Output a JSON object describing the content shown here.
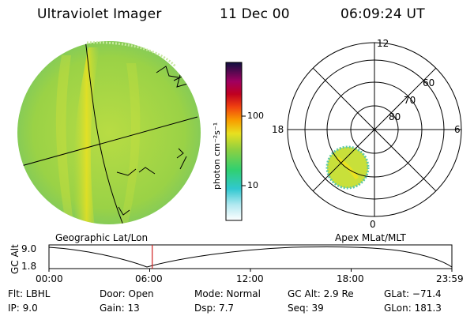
{
  "header": {
    "title": "Ultraviolet Imager",
    "date": "11 Dec 00",
    "time": "06:09:24 UT"
  },
  "colorbar": {
    "unit_label": "photon cm⁻²s⁻¹",
    "ticks": [
      "100",
      "10"
    ]
  },
  "map_labels": {
    "left": "Geographic Lat/Lon",
    "right": "Apex MLat/MLT"
  },
  "polar": {
    "mlt_labels": {
      "top": "12",
      "left": "18",
      "right": "6",
      "bottom": "0"
    },
    "lat_labels": [
      "60",
      "70",
      "80"
    ]
  },
  "altitude_plot": {
    "ylabel": "GC Alt",
    "yticks": [
      "9.0",
      "1.8"
    ],
    "xticks": [
      "00:00",
      "06:00",
      "12:00",
      "18:00",
      "23:59"
    ],
    "current_time_marker_hours": 6.15
  },
  "status": {
    "flt": "Flt: LBHL",
    "ip": "IP:  9.0",
    "door": "Door: Open",
    "gain": "Gain: 13",
    "mode": "Mode: Normal",
    "dsp": "Dsp:     7.7",
    "gc_alt": "GC Alt: 2.9 Re",
    "seq": "Seq: 39",
    "glat": "GLat: −71.4",
    "glon": "GLon: 181.3"
  },
  "colors": {
    "background": "#ffffff",
    "marker": "#d02020",
    "aurora_green": "#9ad246",
    "aurora_yellow": "#f2e21c"
  }
}
